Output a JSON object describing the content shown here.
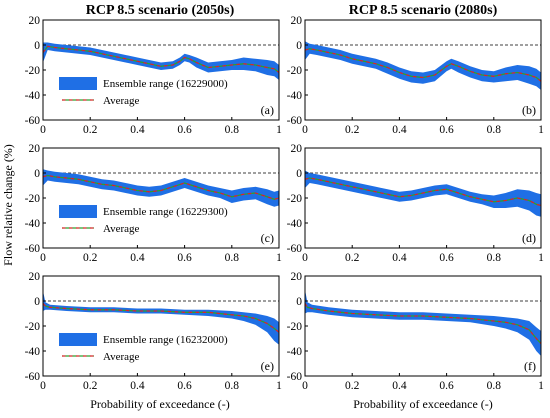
{
  "figure": {
    "ylabel": "Flow relative change (%)",
    "xlabel": "Probability of exceedance (-)",
    "column_titles": [
      "RCP 8.5 scenario (2050s)",
      "RCP 8.5 scenario (2080s)"
    ],
    "colors": {
      "band": "#1f6fe5",
      "average_red": "#d62728",
      "average_green": "#2ca02c",
      "zero_line": "#000000"
    }
  },
  "chart_data": [
    {
      "type": "area",
      "panel": "(a)",
      "legend": [
        "Ensemble range (16229000)",
        "Average"
      ],
      "xlim": [
        0,
        1
      ],
      "ylim": [
        -60,
        20
      ],
      "xticks": [
        "0",
        "0.2",
        "0.4",
        "0.6",
        "0.8",
        "1"
      ],
      "yticks": [
        "20",
        "0",
        "-20",
        "-40",
        "-60"
      ],
      "x": [
        0,
        0.02,
        0.05,
        0.1,
        0.15,
        0.2,
        0.25,
        0.3,
        0.35,
        0.4,
        0.45,
        0.5,
        0.55,
        0.58,
        0.6,
        0.62,
        0.65,
        0.7,
        0.75,
        0.8,
        0.85,
        0.9,
        0.95,
        0.98,
        1.0
      ],
      "average": [
        -6,
        -1,
        -2,
        -3,
        -4,
        -5,
        -7,
        -9,
        -11,
        -13,
        -15,
        -17,
        -16,
        -13,
        -10,
        -11,
        -14,
        -18,
        -17,
        -16,
        -15,
        -16,
        -18,
        -19,
        -22
      ],
      "lower": [
        -14,
        -4,
        -5,
        -6,
        -7,
        -8,
        -10,
        -12,
        -14,
        -16,
        -18,
        -20,
        -19,
        -16,
        -13,
        -14,
        -18,
        -22,
        -21,
        -20,
        -20,
        -21,
        -24,
        -25,
        -28
      ],
      "upper": [
        2,
        2,
        1,
        0,
        -1,
        -2,
        -4,
        -6,
        -8,
        -10,
        -12,
        -14,
        -13,
        -10,
        -7,
        -8,
        -10,
        -14,
        -13,
        -12,
        -10,
        -11,
        -12,
        -13,
        -16
      ]
    },
    {
      "type": "area",
      "panel": "(b)",
      "legend": [],
      "xlim": [
        0,
        1
      ],
      "ylim": [
        -60,
        20
      ],
      "xticks": [
        "0",
        "0.2",
        "0.4",
        "0.6",
        "0.8",
        "1"
      ],
      "yticks": [
        "20",
        "0",
        "-20",
        "-40",
        "-60"
      ],
      "x": [
        0,
        0.02,
        0.05,
        0.1,
        0.15,
        0.2,
        0.25,
        0.3,
        0.35,
        0.4,
        0.45,
        0.5,
        0.55,
        0.6,
        0.62,
        0.65,
        0.7,
        0.75,
        0.8,
        0.85,
        0.9,
        0.95,
        0.98,
        1.0
      ],
      "average": [
        -4,
        -3,
        -4,
        -6,
        -8,
        -11,
        -13,
        -15,
        -18,
        -22,
        -25,
        -26,
        -24,
        -17,
        -15,
        -17,
        -21,
        -24,
        -25,
        -23,
        -22,
        -24,
        -26,
        -29
      ],
      "lower": [
        -12,
        -7,
        -8,
        -10,
        -12,
        -15,
        -17,
        -19,
        -23,
        -27,
        -30,
        -31,
        -29,
        -21,
        -19,
        -22,
        -26,
        -29,
        -30,
        -29,
        -28,
        -31,
        -33,
        -36
      ],
      "upper": [
        3,
        1,
        0,
        -2,
        -4,
        -7,
        -9,
        -11,
        -14,
        -18,
        -21,
        -22,
        -20,
        -13,
        -11,
        -13,
        -17,
        -20,
        -21,
        -18,
        -16,
        -17,
        -19,
        -22
      ]
    },
    {
      "type": "area",
      "panel": "(c)",
      "legend": [
        "Ensemble range (16229300)",
        "Average"
      ],
      "xlim": [
        0,
        1
      ],
      "ylim": [
        -60,
        20
      ],
      "xticks": [
        "0",
        "0.2",
        "0.4",
        "0.6",
        "0.8",
        "1"
      ],
      "yticks": [
        "20",
        "0",
        "-20",
        "-40",
        "-60"
      ],
      "x": [
        0,
        0.02,
        0.05,
        0.1,
        0.15,
        0.2,
        0.25,
        0.3,
        0.35,
        0.4,
        0.45,
        0.5,
        0.55,
        0.6,
        0.65,
        0.7,
        0.75,
        0.8,
        0.85,
        0.9,
        0.95,
        0.98,
        1.0
      ],
      "average": [
        -3,
        -2,
        -3,
        -4,
        -5,
        -7,
        -9,
        -10,
        -12,
        -14,
        -15,
        -14,
        -11,
        -8,
        -11,
        -14,
        -16,
        -19,
        -17,
        -16,
        -19,
        -21,
        -20
      ],
      "lower": [
        -10,
        -6,
        -7,
        -8,
        -9,
        -11,
        -13,
        -14,
        -16,
        -18,
        -19,
        -18,
        -15,
        -12,
        -15,
        -18,
        -20,
        -24,
        -22,
        -21,
        -25,
        -27,
        -26
      ],
      "upper": [
        3,
        2,
        1,
        0,
        -1,
        -3,
        -5,
        -6,
        -8,
        -10,
        -11,
        -10,
        -7,
        -4,
        -7,
        -10,
        -12,
        -14,
        -12,
        -11,
        -13,
        -15,
        -14
      ]
    },
    {
      "type": "area",
      "panel": "(d)",
      "legend": [],
      "xlim": [
        0,
        1
      ],
      "ylim": [
        -60,
        20
      ],
      "xticks": [
        "0",
        "0.2",
        "0.4",
        "0.6",
        "0.8",
        "1"
      ],
      "yticks": [
        "20",
        "0",
        "-20",
        "-40",
        "-60"
      ],
      "x": [
        0,
        0.02,
        0.05,
        0.1,
        0.15,
        0.2,
        0.25,
        0.3,
        0.35,
        0.4,
        0.45,
        0.5,
        0.55,
        0.6,
        0.65,
        0.7,
        0.75,
        0.8,
        0.85,
        0.9,
        0.95,
        0.98,
        1.0
      ],
      "average": [
        -5,
        -4,
        -5,
        -7,
        -9,
        -11,
        -13,
        -15,
        -17,
        -19,
        -18,
        -16,
        -14,
        -13,
        -16,
        -19,
        -21,
        -23,
        -22,
        -20,
        -22,
        -25,
        -26
      ],
      "lower": [
        -12,
        -8,
        -9,
        -11,
        -13,
        -15,
        -17,
        -19,
        -21,
        -23,
        -22,
        -20,
        -18,
        -17,
        -20,
        -23,
        -25,
        -28,
        -28,
        -27,
        -30,
        -34,
        -35
      ],
      "upper": [
        2,
        0,
        -1,
        -3,
        -5,
        -7,
        -9,
        -11,
        -13,
        -15,
        -14,
        -12,
        -10,
        -9,
        -12,
        -15,
        -17,
        -18,
        -16,
        -13,
        -14,
        -16,
        -17
      ]
    },
    {
      "type": "area",
      "panel": "(e)",
      "legend": [
        "Ensemble range (16232000)",
        "Average"
      ],
      "xlim": [
        0,
        1
      ],
      "ylim": [
        -60,
        20
      ],
      "xticks": [
        "0",
        "0.2",
        "0.4",
        "0.6",
        "0.8",
        "1"
      ],
      "yticks": [
        "20",
        "0",
        "-20",
        "-40",
        "-60"
      ],
      "x": [
        0,
        0.01,
        0.03,
        0.1,
        0.2,
        0.3,
        0.4,
        0.5,
        0.6,
        0.7,
        0.8,
        0.85,
        0.9,
        0.95,
        0.98,
        1.0
      ],
      "average": [
        -2,
        -4,
        -5,
        -6,
        -7,
        -7,
        -8,
        -8,
        -9,
        -9,
        -11,
        -12,
        -14,
        -18,
        -22,
        -25
      ],
      "lower": [
        -8,
        -7,
        -7,
        -8,
        -9,
        -9,
        -10,
        -10,
        -11,
        -12,
        -14,
        -16,
        -19,
        -25,
        -32,
        -35
      ],
      "upper": [
        8,
        -1,
        -3,
        -4,
        -5,
        -5,
        -6,
        -6,
        -7,
        -7,
        -8,
        -9,
        -10,
        -12,
        -14,
        -17
      ]
    },
    {
      "type": "area",
      "panel": "(f)",
      "legend": [],
      "xlim": [
        0,
        1
      ],
      "ylim": [
        -60,
        20
      ],
      "xticks": [
        "0",
        "0.2",
        "0.4",
        "0.6",
        "0.8",
        "1"
      ],
      "yticks": [
        "20",
        "0",
        "-20",
        "-40",
        "-60"
      ],
      "x": [
        0,
        0.01,
        0.03,
        0.1,
        0.2,
        0.3,
        0.4,
        0.5,
        0.6,
        0.7,
        0.8,
        0.85,
        0.9,
        0.95,
        0.98,
        1.0
      ],
      "average": [
        -2,
        -5,
        -6,
        -8,
        -10,
        -11,
        -12,
        -12,
        -13,
        -14,
        -16,
        -17,
        -19,
        -23,
        -30,
        -34
      ],
      "lower": [
        -10,
        -9,
        -9,
        -11,
        -13,
        -14,
        -15,
        -15,
        -16,
        -17,
        -20,
        -22,
        -25,
        -31,
        -40,
        -44
      ],
      "upper": [
        9,
        -1,
        -3,
        -5,
        -7,
        -8,
        -9,
        -9,
        -10,
        -11,
        -12,
        -13,
        -14,
        -16,
        -21,
        -24
      ]
    }
  ]
}
